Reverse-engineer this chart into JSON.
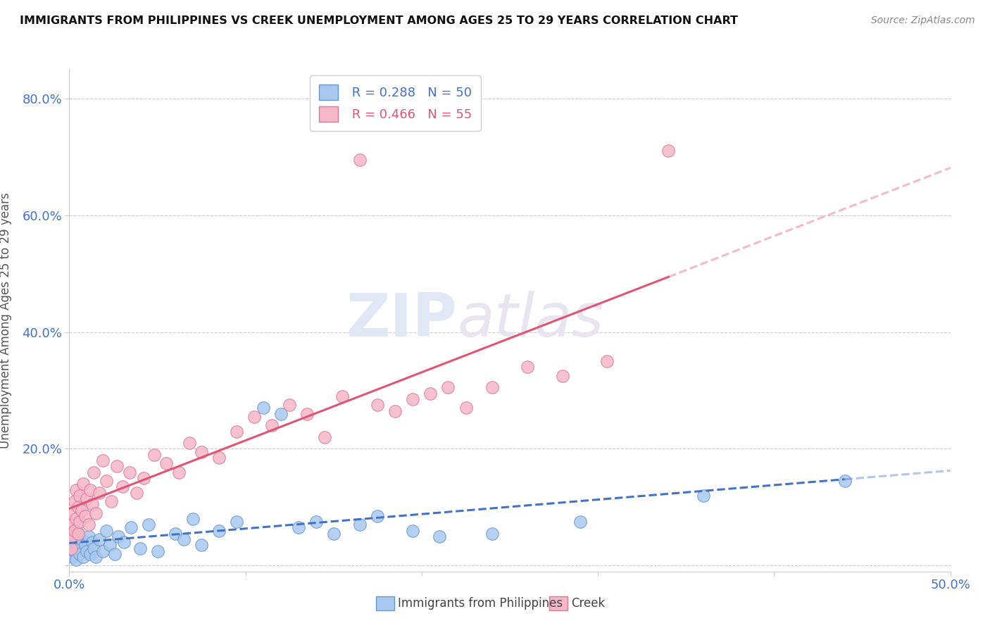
{
  "title": "IMMIGRANTS FROM PHILIPPINES VS CREEK UNEMPLOYMENT AMONG AGES 25 TO 29 YEARS CORRELATION CHART",
  "source": "Source: ZipAtlas.com",
  "ylabel": "Unemployment Among Ages 25 to 29 years",
  "xlim": [
    0.0,
    0.5
  ],
  "ylim": [
    -0.01,
    0.85
  ],
  "series1_name": "Immigrants from Philippines",
  "series1_color": "#a8c8f0",
  "series1_edge_color": "#6699cc",
  "series1_line_color": "#4472c4",
  "series1_R": 0.288,
  "series1_N": 50,
  "series2_name": "Creek",
  "series2_color": "#f5b8c8",
  "series2_edge_color": "#dd7799",
  "series2_line_color": "#e05575",
  "series2_R": 0.466,
  "series2_N": 55,
  "watermark_zip": "ZIP",
  "watermark_atlas": "atlas",
  "background_color": "#ffffff",
  "philippines_x": [
    0.001,
    0.001,
    0.002,
    0.002,
    0.003,
    0.003,
    0.004,
    0.004,
    0.005,
    0.005,
    0.006,
    0.007,
    0.008,
    0.009,
    0.01,
    0.011,
    0.012,
    0.013,
    0.014,
    0.015,
    0.017,
    0.019,
    0.021,
    0.023,
    0.026,
    0.028,
    0.031,
    0.035,
    0.04,
    0.045,
    0.05,
    0.06,
    0.065,
    0.07,
    0.075,
    0.085,
    0.095,
    0.11,
    0.12,
    0.13,
    0.14,
    0.15,
    0.165,
    0.175,
    0.195,
    0.21,
    0.24,
    0.29,
    0.36,
    0.44
  ],
  "philippines_y": [
    0.02,
    0.035,
    0.015,
    0.05,
    0.025,
    0.06,
    0.01,
    0.04,
    0.03,
    0.055,
    0.02,
    0.045,
    0.015,
    0.035,
    0.025,
    0.05,
    0.02,
    0.04,
    0.03,
    0.015,
    0.045,
    0.025,
    0.06,
    0.035,
    0.02,
    0.05,
    0.04,
    0.065,
    0.03,
    0.07,
    0.025,
    0.055,
    0.045,
    0.08,
    0.035,
    0.06,
    0.075,
    0.27,
    0.26,
    0.065,
    0.075,
    0.055,
    0.07,
    0.085,
    0.06,
    0.05,
    0.055,
    0.075,
    0.12,
    0.145
  ],
  "creek_x": [
    0.001,
    0.001,
    0.002,
    0.002,
    0.003,
    0.003,
    0.004,
    0.004,
    0.005,
    0.005,
    0.006,
    0.006,
    0.007,
    0.008,
    0.009,
    0.01,
    0.011,
    0.012,
    0.013,
    0.014,
    0.015,
    0.017,
    0.019,
    0.021,
    0.024,
    0.027,
    0.03,
    0.034,
    0.038,
    0.042,
    0.048,
    0.055,
    0.062,
    0.068,
    0.075,
    0.085,
    0.095,
    0.105,
    0.115,
    0.125,
    0.135,
    0.145,
    0.155,
    0.165,
    0.175,
    0.185,
    0.195,
    0.205,
    0.215,
    0.225,
    0.24,
    0.26,
    0.28,
    0.305,
    0.34
  ],
  "creek_y": [
    0.05,
    0.03,
    0.07,
    0.09,
    0.06,
    0.11,
    0.08,
    0.13,
    0.055,
    0.1,
    0.12,
    0.075,
    0.095,
    0.14,
    0.085,
    0.115,
    0.07,
    0.13,
    0.105,
    0.16,
    0.09,
    0.125,
    0.18,
    0.145,
    0.11,
    0.17,
    0.135,
    0.16,
    0.125,
    0.15,
    0.19,
    0.175,
    0.16,
    0.21,
    0.195,
    0.185,
    0.23,
    0.255,
    0.24,
    0.275,
    0.26,
    0.22,
    0.29,
    0.695,
    0.275,
    0.265,
    0.285,
    0.295,
    0.305,
    0.27,
    0.305,
    0.34,
    0.325,
    0.35,
    0.71
  ]
}
